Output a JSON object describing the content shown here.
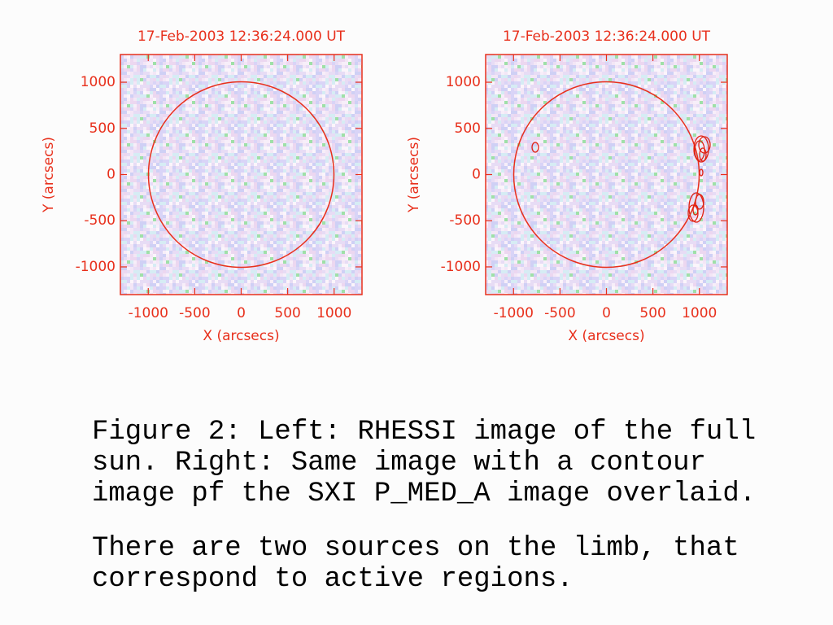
{
  "panels": [
    {
      "title": "17-Feb-2003 12:36:24.000 UT",
      "x_label": "X (arcsecs)",
      "y_label": "Y (arcsecs)",
      "xlim": [
        -1300,
        1300
      ],
      "ylim": [
        -1300,
        1300
      ],
      "xticks": [
        -1000,
        -500,
        0,
        500,
        1000
      ],
      "yticks": [
        1000,
        500,
        0,
        -500,
        -1000
      ]
    },
    {
      "title": "17-Feb-2003 12:36:24.000 UT",
      "x_label": "X (arcsecs)",
      "y_label": "Y (arcsecs)",
      "xlim": [
        -1300,
        1300
      ],
      "ylim": [
        -1300,
        1300
      ],
      "xticks": [
        -1000,
        -500,
        0,
        500,
        1000
      ],
      "yticks": [
        1000,
        500,
        0,
        -500,
        -1000
      ]
    }
  ],
  "caption": {
    "paragraphs": [
      {
        "lines": [
          "Figure 2: Left: RHESSI image of the full",
          "sun. Right: Same image with a contour",
          "image pf the SXI P_MED_A image overlaid."
        ]
      },
      {
        "lines": [
          "There are two sources on the limb, that",
          "correspond to active regions."
        ]
      }
    ]
  }
}
